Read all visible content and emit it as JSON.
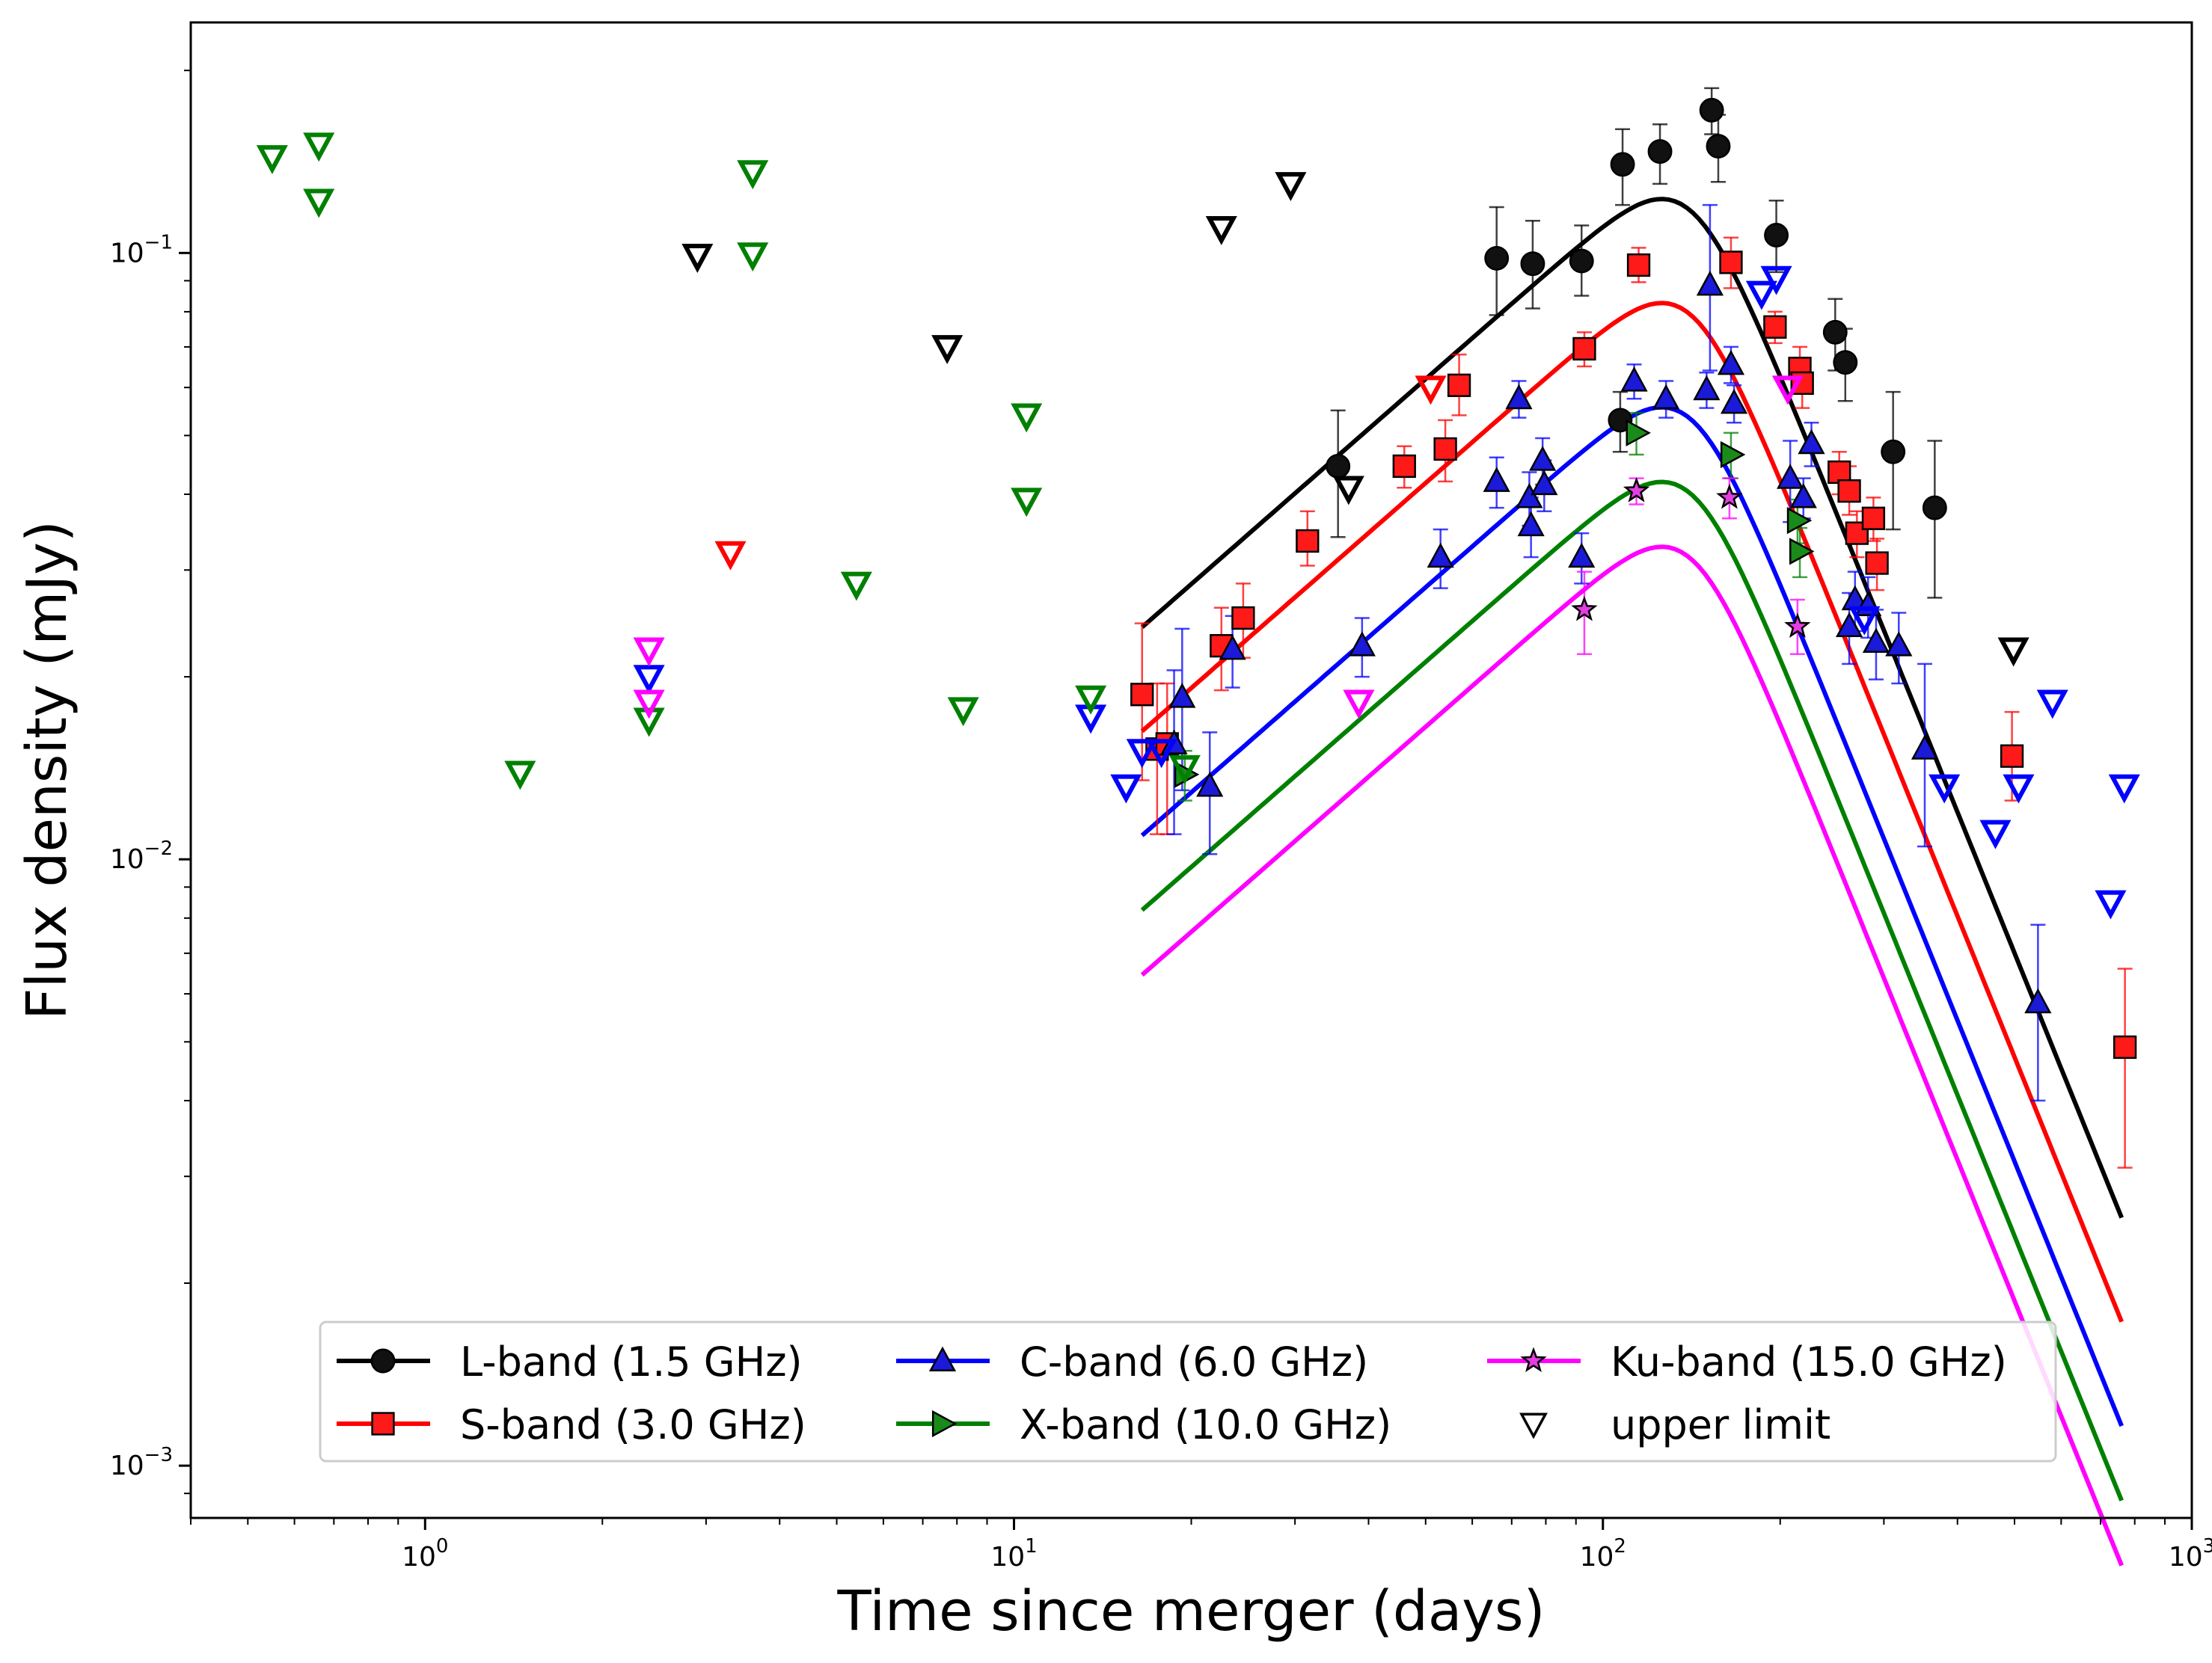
{
  "chart_data": {
    "type": "scatter",
    "title": "",
    "xlabel": "Time since merger (days)",
    "ylabel": "Flux density (mJy)",
    "xscale": "log",
    "yscale": "log",
    "xlim": [
      0.4,
      1000
    ],
    "ylim": [
      0.00082,
      0.24
    ],
    "x_ticks": [
      {
        "value": 1,
        "base": "10",
        "exp": "0"
      },
      {
        "value": 10,
        "base": "10",
        "exp": "1"
      },
      {
        "value": 100,
        "base": "10",
        "exp": "2"
      },
      {
        "value": 1000,
        "base": "10",
        "exp": "3"
      }
    ],
    "y_ticks": [
      {
        "value": 0.001,
        "base": "10",
        "exp": "−3"
      },
      {
        "value": 0.01,
        "base": "10",
        "exp": "−2"
      },
      {
        "value": 0.1,
        "base": "10",
        "exp": "−1"
      }
    ],
    "legend_position": "lower-center",
    "upper_limit_label": "upper limit",
    "series": [
      {
        "name": "L-band (1.5 GHz)",
        "marker": "circle",
        "color": "#000000",
        "markerfill": "#111111",
        "model": {
          "peak_t": 140,
          "peak_f": 0.118,
          "rise": 0.85,
          "decay": -2.4,
          "t0": 16.5,
          "t1": 760
        },
        "points": [
          {
            "t": 35.5,
            "f": 0.0445,
            "lo": 0.034,
            "hi": 0.055
          },
          {
            "t": 66,
            "f": 0.098,
            "lo": 0.079,
            "hi": 0.119
          },
          {
            "t": 76,
            "f": 0.096,
            "lo": 0.081,
            "hi": 0.113
          },
          {
            "t": 92,
            "f": 0.097,
            "lo": 0.085,
            "hi": 0.111
          },
          {
            "t": 107,
            "f": 0.053,
            "lo": 0.047,
            "hi": 0.059
          },
          {
            "t": 108,
            "f": 0.14,
            "lo": 0.12,
            "hi": 0.16
          },
          {
            "t": 125,
            "f": 0.147,
            "lo": 0.13,
            "hi": 0.163
          },
          {
            "t": 153,
            "f": 0.172,
            "lo": 0.157,
            "hi": 0.187
          },
          {
            "t": 157,
            "f": 0.15,
            "lo": 0.131,
            "hi": 0.169
          },
          {
            "t": 197,
            "f": 0.107,
            "lo": 0.093,
            "hi": 0.122
          },
          {
            "t": 248,
            "f": 0.074,
            "lo": 0.064,
            "hi": 0.084
          },
          {
            "t": 258,
            "f": 0.066,
            "lo": 0.057,
            "hi": 0.075
          },
          {
            "t": 311,
            "f": 0.047,
            "lo": 0.035,
            "hi": 0.059
          },
          {
            "t": 366,
            "f": 0.038,
            "lo": 0.027,
            "hi": 0.049
          }
        ],
        "upper_limits": [
          {
            "t": 2.9,
            "f": 0.099
          },
          {
            "t": 7.7,
            "f": 0.07
          },
          {
            "t": 22.5,
            "f": 0.11
          },
          {
            "t": 29.5,
            "f": 0.13
          },
          {
            "t": 37,
            "f": 0.041
          },
          {
            "t": 498,
            "f": 0.0222
          }
        ]
      },
      {
        "name": "S-band (3.0 GHz)",
        "marker": "square",
        "color": "#ff0000",
        "markerfill": "#ff1a1a",
        "model": {
          "peak_t": 140,
          "peak_f": 0.0795,
          "rise": 0.85,
          "decay": -2.4,
          "t0": 16.5,
          "t1": 760
        },
        "points": [
          {
            "t": 16.5,
            "f": 0.0187,
            "lo": 0.0135,
            "hi": 0.0245
          },
          {
            "t": 17.5,
            "f": 0.0152,
            "lo": 0.011,
            "hi": 0.0195
          },
          {
            "t": 18.2,
            "f": 0.0155,
            "lo": 0.011,
            "hi": 0.0195
          },
          {
            "t": 22.5,
            "f": 0.0225,
            "lo": 0.019,
            "hi": 0.026
          },
          {
            "t": 24.5,
            "f": 0.025,
            "lo": 0.0215,
            "hi": 0.0285
          },
          {
            "t": 31.5,
            "f": 0.0335,
            "lo": 0.0305,
            "hi": 0.0375
          },
          {
            "t": 46,
            "f": 0.0445,
            "lo": 0.041,
            "hi": 0.048
          },
          {
            "t": 54,
            "f": 0.0475,
            "lo": 0.042,
            "hi": 0.053
          },
          {
            "t": 57,
            "f": 0.0605,
            "lo": 0.054,
            "hi": 0.068
          },
          {
            "t": 93,
            "f": 0.0695,
            "lo": 0.065,
            "hi": 0.074
          },
          {
            "t": 115,
            "f": 0.0955,
            "lo": 0.0895,
            "hi": 0.102
          },
          {
            "t": 165,
            "f": 0.0965,
            "lo": 0.0875,
            "hi": 0.106
          },
          {
            "t": 196,
            "f": 0.0755,
            "lo": 0.071,
            "hi": 0.08
          },
          {
            "t": 216,
            "f": 0.0645,
            "lo": 0.0595,
            "hi": 0.07
          },
          {
            "t": 218,
            "f": 0.061,
            "lo": 0.0555,
            "hi": 0.067
          },
          {
            "t": 252,
            "f": 0.0435,
            "lo": 0.04,
            "hi": 0.047
          },
          {
            "t": 262,
            "f": 0.0405,
            "lo": 0.037,
            "hi": 0.0445
          },
          {
            "t": 270,
            "f": 0.0345,
            "lo": 0.0315,
            "hi": 0.0375
          },
          {
            "t": 288,
            "f": 0.0365,
            "lo": 0.0335,
            "hi": 0.0395
          },
          {
            "t": 292,
            "f": 0.0308,
            "lo": 0.0278,
            "hi": 0.0338
          },
          {
            "t": 495,
            "f": 0.0148,
            "lo": 0.0125,
            "hi": 0.0175
          },
          {
            "t": 770,
            "f": 0.0049,
            "lo": 0.0031,
            "hi": 0.0066
          }
        ],
        "upper_limits": [
          {
            "t": 3.3,
            "f": 0.032
          },
          {
            "t": 51,
            "f": 0.06
          }
        ]
      },
      {
        "name": "C-band (6.0 GHz)",
        "marker": "triangle-up",
        "color": "#0000ff",
        "markerfill": "#1a1ad8",
        "model": {
          "peak_t": 140,
          "peak_f": 0.0535,
          "rise": 0.85,
          "decay": -2.4,
          "t0": 16.5,
          "t1": 760
        },
        "points": [
          {
            "t": 18.7,
            "f": 0.0155,
            "lo": 0.011,
            "hi": 0.0205
          },
          {
            "t": 19.3,
            "f": 0.0185,
            "lo": 0.013,
            "hi": 0.024
          },
          {
            "t": 21.5,
            "f": 0.0132,
            "lo": 0.0102,
            "hi": 0.0162
          },
          {
            "t": 23.5,
            "f": 0.0222,
            "lo": 0.0192,
            "hi": 0.0252
          },
          {
            "t": 39,
            "f": 0.0225,
            "lo": 0.02,
            "hi": 0.025
          },
          {
            "t": 53,
            "f": 0.0315,
            "lo": 0.028,
            "hi": 0.035
          },
          {
            "t": 66,
            "f": 0.042,
            "lo": 0.038,
            "hi": 0.046
          },
          {
            "t": 72,
            "f": 0.0575,
            "lo": 0.0535,
            "hi": 0.0615
          },
          {
            "t": 75,
            "f": 0.0395,
            "lo": 0.0355,
            "hi": 0.0435
          },
          {
            "t": 75.5,
            "f": 0.0355,
            "lo": 0.0315,
            "hi": 0.0395
          },
          {
            "t": 79,
            "f": 0.0455,
            "lo": 0.0415,
            "hi": 0.0495
          },
          {
            "t": 79.5,
            "f": 0.0415,
            "lo": 0.0375,
            "hi": 0.0455
          },
          {
            "t": 92,
            "f": 0.0315,
            "lo": 0.0285,
            "hi": 0.0345
          },
          {
            "t": 113,
            "f": 0.0615,
            "lo": 0.0575,
            "hi": 0.0655
          },
          {
            "t": 128,
            "f": 0.0575,
            "lo": 0.0535,
            "hi": 0.0615
          },
          {
            "t": 150,
            "f": 0.0595,
            "lo": 0.0555,
            "hi": 0.0635
          },
          {
            "t": 152,
            "f": 0.0885,
            "lo": 0.064,
            "hi": 0.12
          },
          {
            "t": 165,
            "f": 0.0655,
            "lo": 0.061,
            "hi": 0.07
          },
          {
            "t": 167,
            "f": 0.0565,
            "lo": 0.0525,
            "hi": 0.0605
          },
          {
            "t": 208,
            "f": 0.0425,
            "lo": 0.036,
            "hi": 0.049
          },
          {
            "t": 219,
            "f": 0.0395,
            "lo": 0.0365,
            "hi": 0.0425
          },
          {
            "t": 226,
            "f": 0.0485,
            "lo": 0.0445,
            "hi": 0.0525
          },
          {
            "t": 262,
            "f": 0.0242,
            "lo": 0.021,
            "hi": 0.0275
          },
          {
            "t": 268,
            "f": 0.0268,
            "lo": 0.0238,
            "hi": 0.0298
          },
          {
            "t": 282,
            "f": 0.0262,
            "lo": 0.0232,
            "hi": 0.0292
          },
          {
            "t": 291,
            "f": 0.0228,
            "lo": 0.0198,
            "hi": 0.0258
          },
          {
            "t": 318,
            "f": 0.0225,
            "lo": 0.0195,
            "hi": 0.0255
          },
          {
            "t": 352,
            "f": 0.0152,
            "lo": 0.0105,
            "hi": 0.021
          },
          {
            "t": 548,
            "f": 0.0058,
            "lo": 0.004,
            "hi": 0.0078
          }
        ],
        "upper_limits": [
          {
            "t": 2.4,
            "f": 0.02
          },
          {
            "t": 13.5,
            "f": 0.0172
          },
          {
            "t": 15.5,
            "f": 0.0132
          },
          {
            "t": 16.5,
            "f": 0.0151
          },
          {
            "t": 17.8,
            "f": 0.0151
          },
          {
            "t": 186,
            "f": 0.086
          },
          {
            "t": 197,
            "f": 0.091
          },
          {
            "t": 278,
            "f": 0.025
          },
          {
            "t": 380,
            "f": 0.0132
          },
          {
            "t": 464,
            "f": 0.0111
          },
          {
            "t": 508,
            "f": 0.0132
          },
          {
            "t": 580,
            "f": 0.0182
          },
          {
            "t": 728,
            "f": 0.0085
          },
          {
            "t": 768,
            "f": 0.0132
          }
        ]
      },
      {
        "name": "X-band (10.0 GHz)",
        "marker": "triangle-right",
        "color": "#008000",
        "markerfill": "#1a8a1a",
        "model": {
          "peak_t": 140,
          "peak_f": 0.0403,
          "rise": 0.85,
          "decay": -2.4,
          "t0": 16.5,
          "t1": 760
        },
        "points": [
          {
            "t": 19.5,
            "f": 0.0138,
            "lo": 0.0125,
            "hi": 0.0151
          },
          {
            "t": 114,
            "f": 0.0505,
            "lo": 0.0465,
            "hi": 0.0545
          },
          {
            "t": 165,
            "f": 0.0465,
            "lo": 0.0425,
            "hi": 0.0505
          },
          {
            "t": 214,
            "f": 0.0362,
            "lo": 0.0332,
            "hi": 0.0392
          },
          {
            "t": 216,
            "f": 0.0322,
            "lo": 0.0292,
            "hi": 0.0352
          }
        ],
        "upper_limits": [
          {
            "t": 0.55,
            "f": 0.144
          },
          {
            "t": 0.66,
            "f": 0.151
          },
          {
            "t": 0.66,
            "f": 0.122
          },
          {
            "t": 1.45,
            "f": 0.0139
          },
          {
            "t": 2.4,
            "f": 0.017
          },
          {
            "t": 3.6,
            "f": 0.136
          },
          {
            "t": 3.6,
            "f": 0.0995
          },
          {
            "t": 5.4,
            "f": 0.0285
          },
          {
            "t": 8.2,
            "f": 0.0177
          },
          {
            "t": 10.5,
            "f": 0.054
          },
          {
            "t": 10.5,
            "f": 0.0392
          },
          {
            "t": 13.5,
            "f": 0.0185
          },
          {
            "t": 19.5,
            "f": 0.0142
          }
        ]
      },
      {
        "name": "Ku-band (15.0 GHz)",
        "marker": "star",
        "color": "#ff00ff",
        "markerfill": "#e23ee2",
        "model": {
          "peak_t": 140,
          "peak_f": 0.0315,
          "rise": 0.85,
          "decay": -2.4,
          "t0": 16.5,
          "t1": 760
        },
        "points": [
          {
            "t": 93,
            "f": 0.0258,
            "lo": 0.0218,
            "hi": 0.0298
          },
          {
            "t": 114,
            "f": 0.0405,
            "lo": 0.0385,
            "hi": 0.0425
          },
          {
            "t": 164,
            "f": 0.0395,
            "lo": 0.0365,
            "hi": 0.0425
          },
          {
            "t": 214,
            "f": 0.0242,
            "lo": 0.0218,
            "hi": 0.0268
          }
        ],
        "upper_limits": [
          {
            "t": 2.4,
            "f": 0.0222
          },
          {
            "t": 2.4,
            "f": 0.0182
          },
          {
            "t": 38.5,
            "f": 0.0182
          },
          {
            "t": 206,
            "f": 0.06
          }
        ]
      }
    ]
  }
}
